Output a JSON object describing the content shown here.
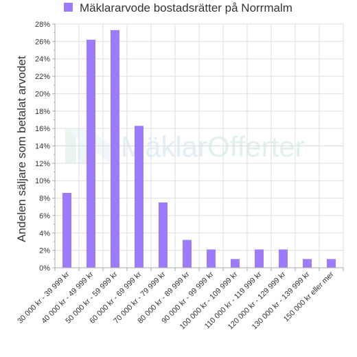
{
  "chart_data": {
    "type": "bar",
    "legend": {
      "label": "Mäklararvode bostadsrätter på Norrmalm",
      "position": "top"
    },
    "ylabel": "Andelen säljare som betalat arvodet",
    "ylim": [
      0,
      28
    ],
    "y_ticks": [
      0,
      2,
      4,
      6,
      8,
      10,
      12,
      14,
      16,
      18,
      20,
      22,
      24,
      26,
      28
    ],
    "y_tick_suffix": "%",
    "grid": true,
    "categories": [
      "30 000 kr - 39 999 kr",
      "40 000 kr - 49 999 kr",
      "50 000 kr - 59 999 kr",
      "60 000 kr - 69 999 kr",
      "70 000 kr - 79 999 kr",
      "80 000 kr - 89 999 kr",
      "90 000 kr - 99 999 kr",
      "100 000 kr - 109 999 kr",
      "110 000 kr - 119 999 kr",
      "120 000 kr - 129 999 kr",
      "130 000 kr - 139 999 kr",
      "150 000 kr eller mer"
    ],
    "series": [
      {
        "name": "Mäklararvode bostadsrätter på Norrmalm",
        "color": "#9d7bfb",
        "values": [
          8.6,
          26.2,
          27.3,
          16.3,
          7.5,
          3.2,
          2.1,
          1.0,
          2.1,
          2.1,
          1.0,
          1.0
        ]
      }
    ]
  },
  "watermark": {
    "text_part1": "Mäklar",
    "text_part2": "Offerter"
  },
  "colors": {
    "bar": "#9d7bfb",
    "grid": "#dddddd",
    "axis": "#aaaaaa",
    "text": "#333333"
  }
}
